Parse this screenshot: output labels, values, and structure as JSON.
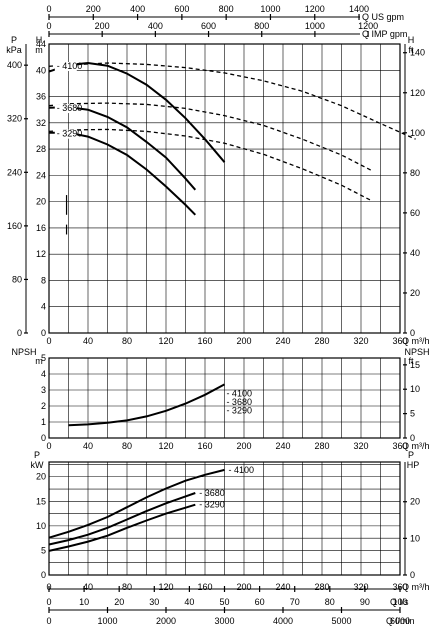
{
  "chart_data": [
    {
      "type": "line",
      "panel": "head",
      "x_axis": {
        "label": "Q m³/h",
        "range": [
          0,
          360
        ],
        "ticks": [
          0,
          40,
          80,
          120,
          160,
          200,
          240,
          280,
          320,
          360
        ]
      },
      "top_axes": [
        {
          "label": "Q US gpm",
          "ticks": [
            0,
            200,
            400,
            600,
            800,
            1000,
            1200,
            1400
          ],
          "max": 1585
        },
        {
          "label": "Q IMP gpm",
          "ticks": [
            0,
            200,
            400,
            600,
            800,
            1000,
            1200
          ],
          "max": 1320
        }
      ],
      "y_left_outer": {
        "label": "P",
        "unit": "kPa",
        "ticks": [
          0,
          80,
          160,
          240,
          320,
          400
        ]
      },
      "y_left": {
        "label": "H",
        "unit": "m",
        "range": [
          0,
          44
        ],
        "ticks": [
          0,
          4,
          8,
          12,
          16,
          20,
          24,
          28,
          32,
          36,
          40,
          44
        ]
      },
      "y_right": {
        "label": "H",
        "unit": "ft",
        "ticks": [
          0,
          20,
          40,
          60,
          80,
          100,
          120,
          140
        ]
      },
      "series": [
        {
          "name": "4100",
          "x": [
            0,
            20,
            40,
            60,
            80,
            100,
            120,
            140,
            160,
            180
          ],
          "y": [
            39.8,
            40.8,
            41.1,
            40.7,
            39.5,
            37.8,
            35.5,
            32.7,
            29.5,
            26.0
          ]
        },
        {
          "name": "3680",
          "x": [
            0,
            20,
            40,
            60,
            80,
            100,
            120,
            140,
            150
          ],
          "y": [
            34.3,
            34.4,
            34.0,
            32.9,
            31.3,
            29.1,
            26.7,
            23.5,
            21.8
          ]
        },
        {
          "name": "3290",
          "x": [
            0,
            20,
            40,
            60,
            80,
            100,
            120,
            140,
            150
          ],
          "y": [
            30.5,
            30.5,
            29.9,
            28.7,
            27.1,
            24.9,
            22.3,
            19.5,
            18.0
          ]
        }
      ],
      "dashed_series": [
        {
          "x": [
            0,
            20,
            60,
            100,
            140,
            180,
            220,
            260,
            300,
            340,
            376
          ],
          "y": [
            40.6,
            40.8,
            41.1,
            40.9,
            40.4,
            39.6,
            38.4,
            36.8,
            34.6,
            31.9,
            29.5
          ]
        },
        {
          "x": [
            0,
            20,
            60,
            100,
            140,
            180,
            220,
            260,
            300,
            330
          ],
          "y": [
            34.6,
            34.9,
            35.0,
            34.8,
            34.2,
            33.1,
            31.6,
            29.5,
            27.1,
            24.8
          ]
        },
        {
          "x": [
            0,
            20,
            60,
            100,
            140,
            180,
            220,
            260,
            300,
            330
          ],
          "y": [
            30.7,
            30.9,
            31.0,
            30.7,
            30.0,
            28.9,
            27.2,
            25.0,
            22.5,
            20.2
          ]
        }
      ]
    },
    {
      "type": "line",
      "panel": "npsh",
      "y_left": {
        "label": "NPSH",
        "unit": "m",
        "range": [
          0,
          5
        ],
        "ticks": [
          0,
          1,
          2,
          3,
          4,
          5
        ]
      },
      "y_right": {
        "label": "NPSH",
        "unit": "ft",
        "ticks": [
          0,
          5,
          10,
          15
        ]
      },
      "x_axis": {
        "label": "Q m³/h",
        "ticks": [
          0,
          40,
          80,
          120,
          160,
          200,
          240,
          280,
          320,
          360
        ]
      },
      "series": [
        {
          "name": "4100 / 3680 / 3290",
          "x": [
            20,
            40,
            60,
            80,
            100,
            120,
            140,
            160,
            180
          ],
          "y": [
            0.8,
            0.85,
            0.95,
            1.1,
            1.35,
            1.7,
            2.15,
            2.7,
            3.35
          ]
        }
      ],
      "labels": [
        "4100",
        "3680",
        "3290"
      ]
    },
    {
      "type": "line",
      "panel": "power",
      "y_left": {
        "label": "P",
        "unit": "kW",
        "range": [
          0,
          23
        ],
        "ticks": [
          0,
          5,
          10,
          15,
          20
        ]
      },
      "y_right": {
        "label": "P",
        "unit": "HP",
        "ticks": [
          0,
          10,
          20
        ]
      },
      "x_axis": {
        "label": "Q m³/h",
        "ticks": [
          0,
          40,
          80,
          120,
          160,
          200,
          240,
          280,
          320,
          360
        ]
      },
      "bottom_axes": [
        {
          "label": "Q l/s",
          "ticks": [
            0,
            10,
            20,
            30,
            40,
            50,
            60,
            70,
            80,
            90,
            100
          ]
        },
        {
          "label": "Q l/min",
          "ticks": [
            0,
            1000,
            2000,
            3000,
            4000,
            5000,
            6000
          ]
        }
      ],
      "series": [
        {
          "name": "4100",
          "x": [
            0,
            20,
            40,
            60,
            80,
            100,
            120,
            140,
            160,
            180
          ],
          "y": [
            7.6,
            8.8,
            10.2,
            11.8,
            13.8,
            15.8,
            17.6,
            19.2,
            20.4,
            21.4
          ]
        },
        {
          "name": "3680",
          "x": [
            0,
            20,
            40,
            60,
            80,
            100,
            120,
            140,
            150
          ],
          "y": [
            6.2,
            7.1,
            8.2,
            9.6,
            11.3,
            13.0,
            14.6,
            16.0,
            16.7
          ]
        },
        {
          "name": "3290",
          "x": [
            0,
            20,
            40,
            60,
            80,
            100,
            120,
            140,
            150
          ],
          "y": [
            4.9,
            5.8,
            6.8,
            8.0,
            9.6,
            11.1,
            12.5,
            13.7,
            14.3
          ]
        }
      ]
    }
  ]
}
